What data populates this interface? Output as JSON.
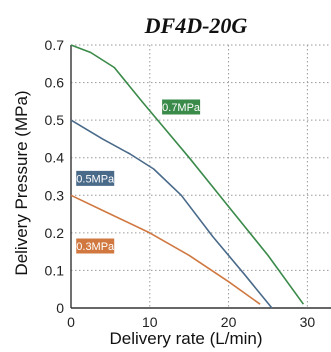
{
  "chart_data": {
    "type": "line",
    "title": "DF4D-20G",
    "xlabel": "Delivery rate (L/min)",
    "ylabel": "Delivery Pressure (MPa)",
    "xlim": [
      0,
      33
    ],
    "ylim": [
      0,
      0.7
    ],
    "x_ticks": [
      "0",
      "10",
      "20",
      "30"
    ],
    "y_ticks": [
      "0",
      "0.1",
      "0.2",
      "0.3",
      "0.4",
      "0.5",
      "0.6",
      "0.7"
    ],
    "grid": "dotted",
    "colors": {
      "0.7MPa": "#3a8a4a",
      "0.5MPa": "#4a6a8a",
      "0.3MPa": "#d07840"
    },
    "series": [
      {
        "name": "0.7MPa",
        "color": "#3a8a4a",
        "points": [
          [
            0,
            0.7
          ],
          [
            2.5,
            0.68
          ],
          [
            5.5,
            0.64
          ],
          [
            9,
            0.55
          ],
          [
            15,
            0.4
          ],
          [
            20,
            0.27
          ],
          [
            25,
            0.14
          ],
          [
            29.5,
            0.01
          ]
        ]
      },
      {
        "name": "0.5MPa",
        "color": "#4a6a8a",
        "points": [
          [
            0,
            0.5
          ],
          [
            4,
            0.45
          ],
          [
            7.5,
            0.41
          ],
          [
            10.5,
            0.37
          ],
          [
            14,
            0.3
          ],
          [
            18,
            0.19
          ],
          [
            22,
            0.09
          ],
          [
            25.5,
            0.0
          ]
        ]
      },
      {
        "name": "0.3MPa",
        "color": "#d07840",
        "points": [
          [
            0,
            0.3
          ],
          [
            5,
            0.25
          ],
          [
            10,
            0.2
          ],
          [
            15,
            0.14
          ],
          [
            20,
            0.07
          ],
          [
            24,
            0.01
          ]
        ]
      }
    ],
    "series_label_positions": {
      "0.7MPa": [
        11.5,
        0.535
      ],
      "0.5MPa": [
        0.6,
        0.345
      ],
      "0.3MPa": [
        0.6,
        0.165
      ]
    }
  }
}
